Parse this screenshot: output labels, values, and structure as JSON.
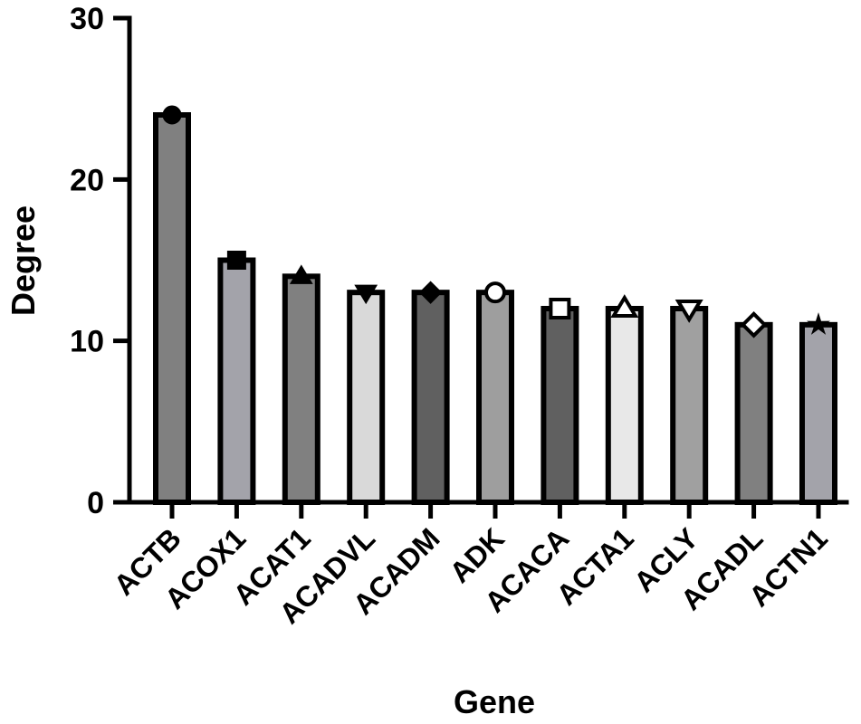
{
  "chart_data": {
    "type": "bar",
    "title": "",
    "xlabel": "Gene",
    "ylabel": "Degree",
    "ylim": [
      0,
      30
    ],
    "yticks": [
      0,
      10,
      20,
      30
    ],
    "categories": [
      "ACTB",
      "ACOX1",
      "ACAT1",
      "ACADVL",
      "ACADM",
      "ADK",
      "ACACA",
      "ACTA1",
      "ACLY",
      "ACADL",
      "ACTN1"
    ],
    "values": [
      24,
      15,
      14,
      13,
      13,
      13,
      12,
      12,
      12,
      11,
      11
    ],
    "bar_colors": [
      "#808080",
      "#a3a3aa",
      "#808080",
      "#d9d9d9",
      "#606060",
      "#9e9e9e",
      "#606060",
      "#e8e8e8",
      "#a0a0a0",
      "#808080",
      "#a3a3aa"
    ],
    "markers": [
      "circle",
      "square",
      "triangle-up",
      "triangle-down",
      "diamond",
      "circle-open",
      "square-open",
      "triangle-up-open",
      "triangle-down-open",
      "diamond-open",
      "star"
    ],
    "grid": false,
    "legend": "none"
  }
}
